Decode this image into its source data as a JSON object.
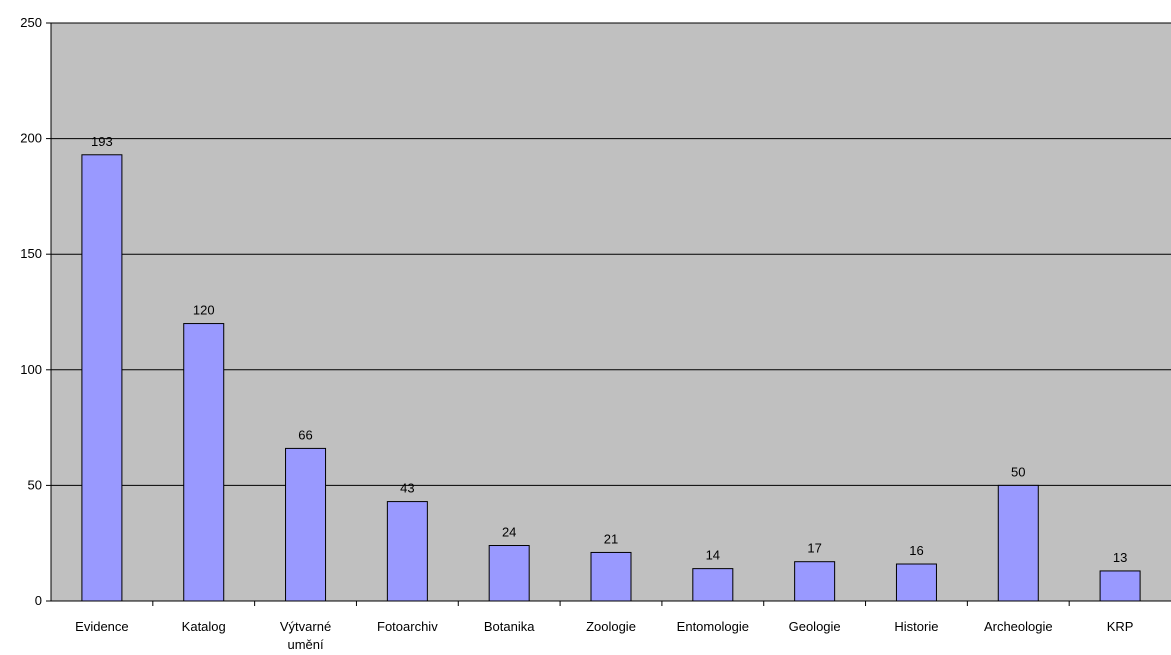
{
  "chart_data": {
    "type": "bar",
    "title": "",
    "xlabel": "",
    "ylabel": "",
    "categories": [
      "Evidence",
      "Katalog",
      "Výtvarné umění",
      "Fotoarchiv",
      "Botanika",
      "Zoologie",
      "Entomologie",
      "Geologie",
      "Historie",
      "Archeologie",
      "KRP"
    ],
    "values": [
      193,
      120,
      66,
      43,
      24,
      21,
      14,
      17,
      16,
      50,
      13
    ],
    "data_labels": [
      "193",
      "120",
      "66",
      "43",
      "24",
      "21",
      "14",
      "17",
      "16",
      "50",
      "13"
    ],
    "yticks": [
      "0",
      "50",
      "100",
      "150",
      "200",
      "250"
    ],
    "ylim": [
      0,
      250
    ],
    "grid": "horizontal",
    "legend": "none",
    "colors": {
      "bar_fill": "#9999ff",
      "bar_stroke": "#000000",
      "plot_background": "#c0c0c0",
      "gridline": "#000000"
    }
  }
}
